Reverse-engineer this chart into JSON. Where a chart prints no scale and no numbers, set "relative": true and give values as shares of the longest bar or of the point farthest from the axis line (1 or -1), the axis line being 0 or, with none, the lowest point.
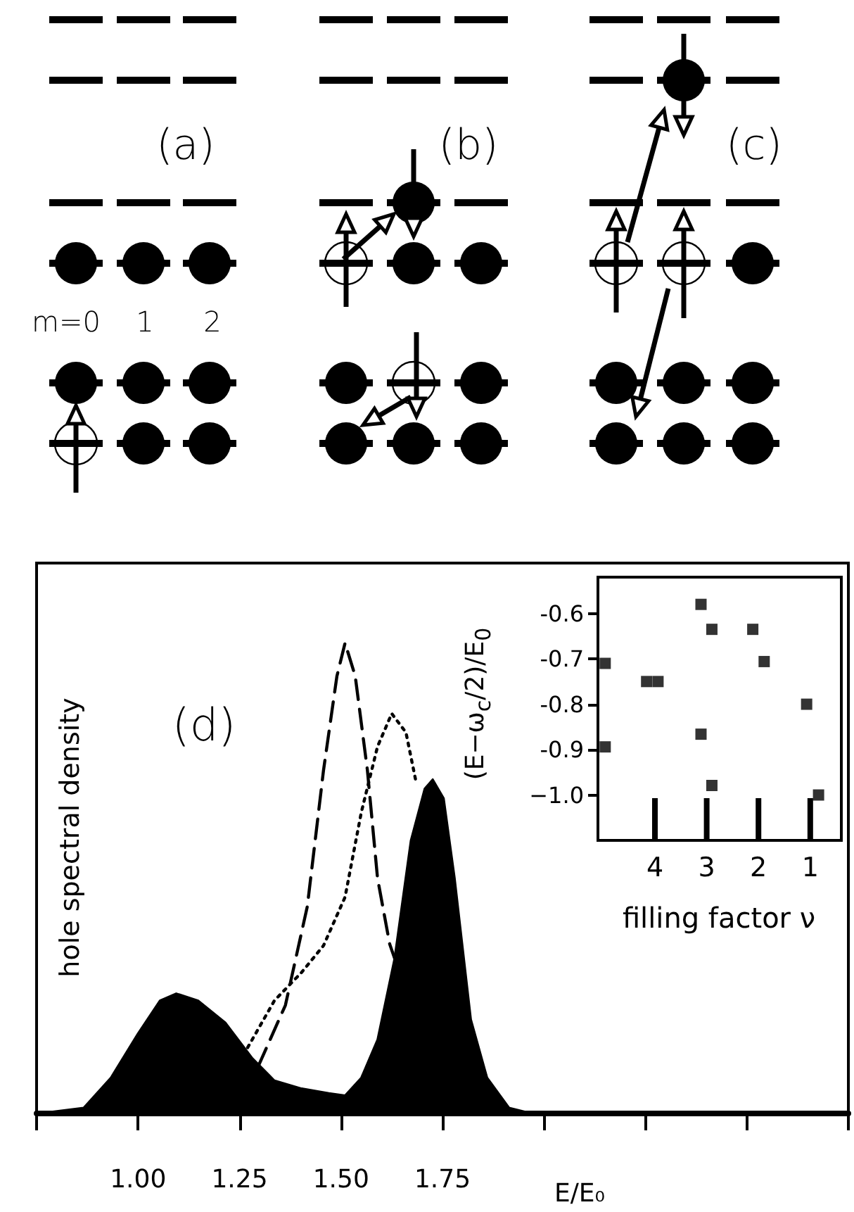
{
  "chart_data": [
    {
      "type": "other",
      "annotations": [
        "(a)",
        "(b)",
        "(c)",
        "m=0",
        "1",
        "2"
      ]
    },
    {
      "type": "area",
      "xlabel": "E/E₀",
      "ylabel": "hole spectral density",
      "annotations": [
        "(d)"
      ],
      "relative": true,
      "marker": "none",
      "tick_labels": "x",
      "xlim": [
        0.75,
        2.75
      ],
      "xticks": [
        {
          "value": 0.75,
          "label": null
        },
        {
          "value": 1,
          "label": "1.00"
        },
        1.25,
        {
          "value": 1.5,
          "label": "1.50"
        },
        1.75,
        {
          "value": 2,
          "label": null
        },
        {
          "value": 2.25,
          "label": null
        },
        {
          "value": 2.5,
          "label": null
        },
        {
          "value": 2.75,
          "label": null
        }
      ],
      "series": [
        {
          "type": "area",
          "color": "#000000",
          "x": [
            0.755,
            0.866,
            0.933,
            1.0,
            1.054,
            1.094,
            1.148,
            1.215,
            1.282,
            1.336,
            1.403,
            1.47,
            1.51,
            1.55,
            1.59,
            1.632,
            1.672,
            1.706,
            1.726,
            1.753,
            1.78,
            1.82,
            1.86,
            1.914,
            1.97,
            2.75
          ],
          "values": [
            0,
            0.012,
            0.076,
            0.17,
            0.24,
            0.255,
            0.24,
            0.193,
            0.117,
            0.07,
            0.053,
            0.043,
            0.038,
            0.076,
            0.157,
            0.33,
            0.58,
            0.69,
            0.71,
            0.67,
            0.5,
            0.2,
            0.076,
            0.012,
            0,
            0
          ]
        },
        {
          "type": "line",
          "line_style": "dashed",
          "color": "#000000",
          "x": [
            1.296,
            1.363,
            1.417,
            1.457,
            1.49,
            1.51,
            1.535,
            1.565,
            1.59,
            1.62,
            1.632
          ],
          "values": [
            0.1,
            0.23,
            0.44,
            0.73,
            0.93,
            1.0,
            0.93,
            0.73,
            0.5,
            0.36,
            0.33
          ]
        },
        {
          "type": "line",
          "line_style": "dotted",
          "color": "#000000",
          "x": [
            1.27,
            1.336,
            1.403,
            1.457,
            1.51,
            1.55,
            1.59,
            1.625,
            1.66,
            1.686
          ],
          "values": [
            0.14,
            0.24,
            0.3,
            0.357,
            0.46,
            0.64,
            0.78,
            0.85,
            0.81,
            0.7
          ]
        }
      ]
    },
    {
      "type": "scatter",
      "xlabel": "filling factor ν",
      "ylabel": "(E−ω$_{c}$/2)/E$_{0}$",
      "marker": "square",
      "color": "#000000",
      "xlim": [
        5.1,
        0.4
      ],
      "xticks": [
        4,
        3,
        2,
        1
      ],
      "ylim": [
        -1.1,
        -0.52
      ],
      "yticks": [
        -0.6,
        -0.7,
        -0.8,
        -0.9,
        {
          "value": -1,
          "label": "−1.0"
        }
      ],
      "x": [
        4.96,
        4.96,
        4.16,
        3.94,
        3.11,
        2.9,
        3.11,
        2.9,
        2.11,
        1.89,
        1.07,
        0.84
      ],
      "values": [
        -0.71,
        -0.894,
        -0.75,
        -0.75,
        -0.58,
        -0.635,
        -0.866,
        -0.979,
        -0.635,
        -0.706,
        -0.8,
        -1.0
      ]
    }
  ]
}
